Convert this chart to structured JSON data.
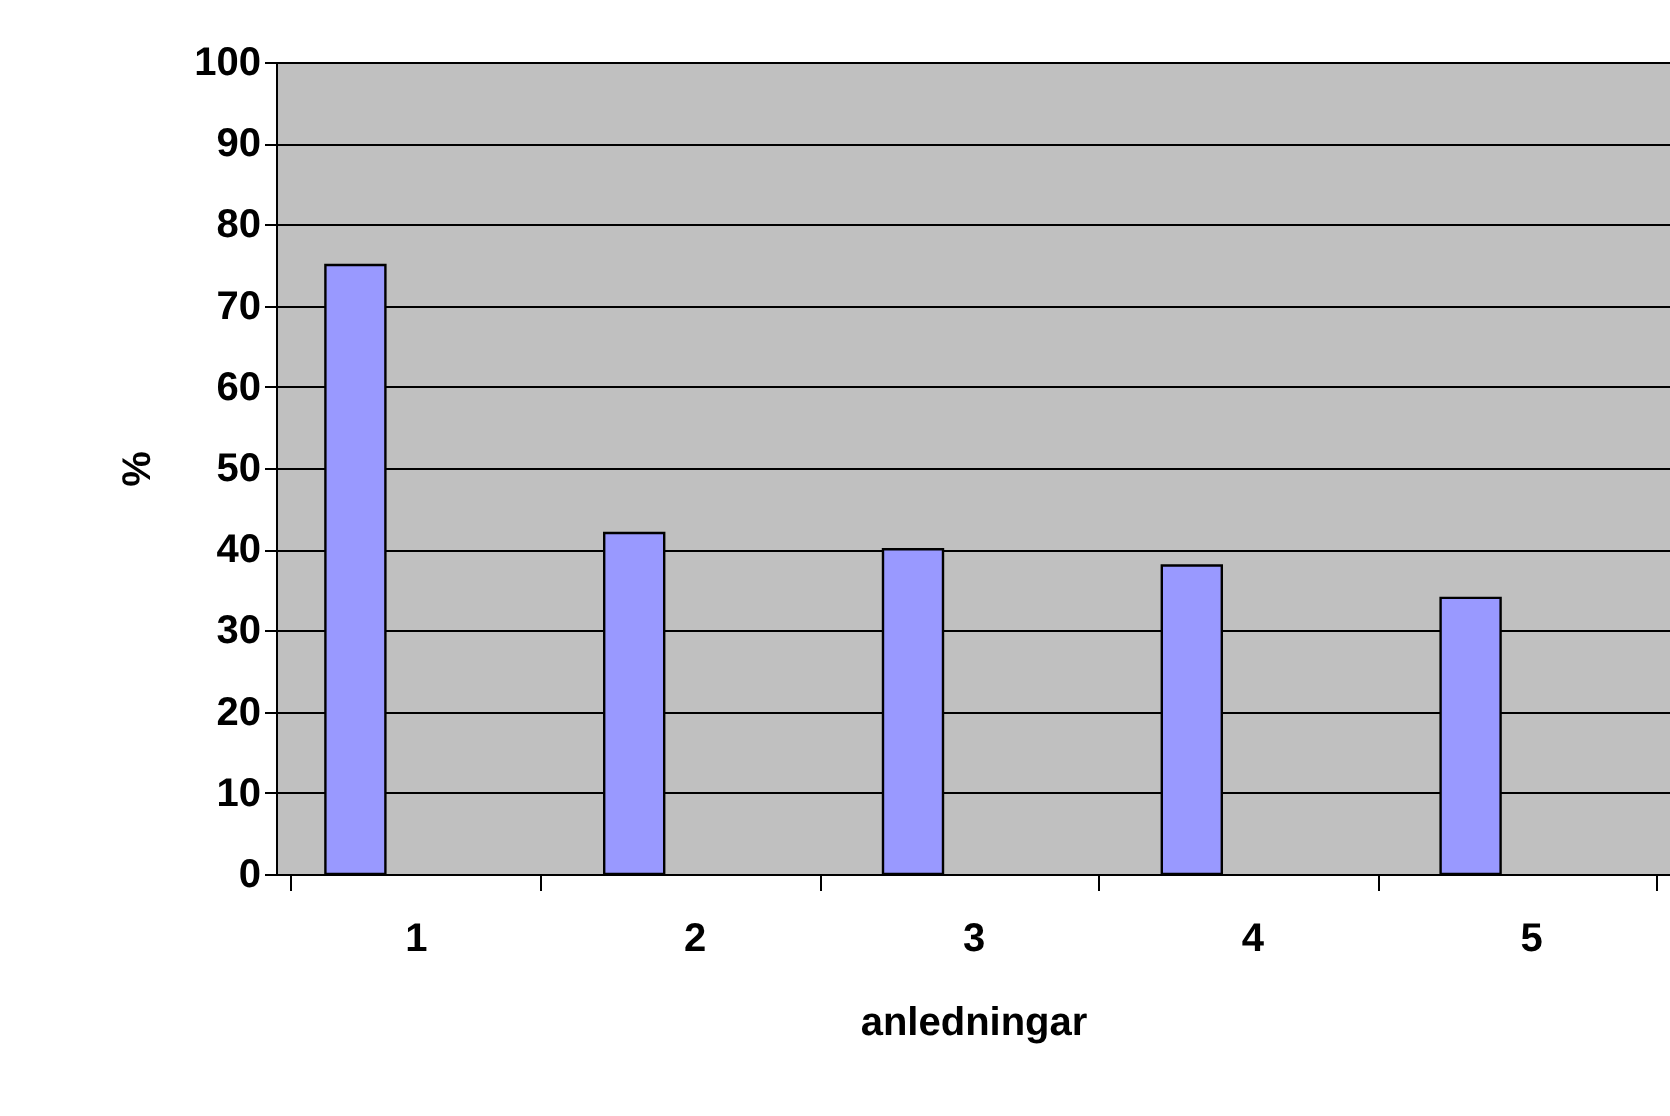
{
  "chart_data": {
    "type": "bar",
    "xlabel": "anledningar",
    "ylabel": "%",
    "categories": [
      "1",
      "2",
      "3",
      "4",
      "5"
    ],
    "series": [
      {
        "color": "#9999ff",
        "values": [
          75,
          42,
          40,
          38,
          34
        ]
      }
    ],
    "ylim": [
      0,
      100
    ],
    "yticks": [
      0,
      10,
      20,
      30,
      40,
      50,
      60,
      70,
      80,
      90,
      100
    ],
    "grid": "y"
  }
}
